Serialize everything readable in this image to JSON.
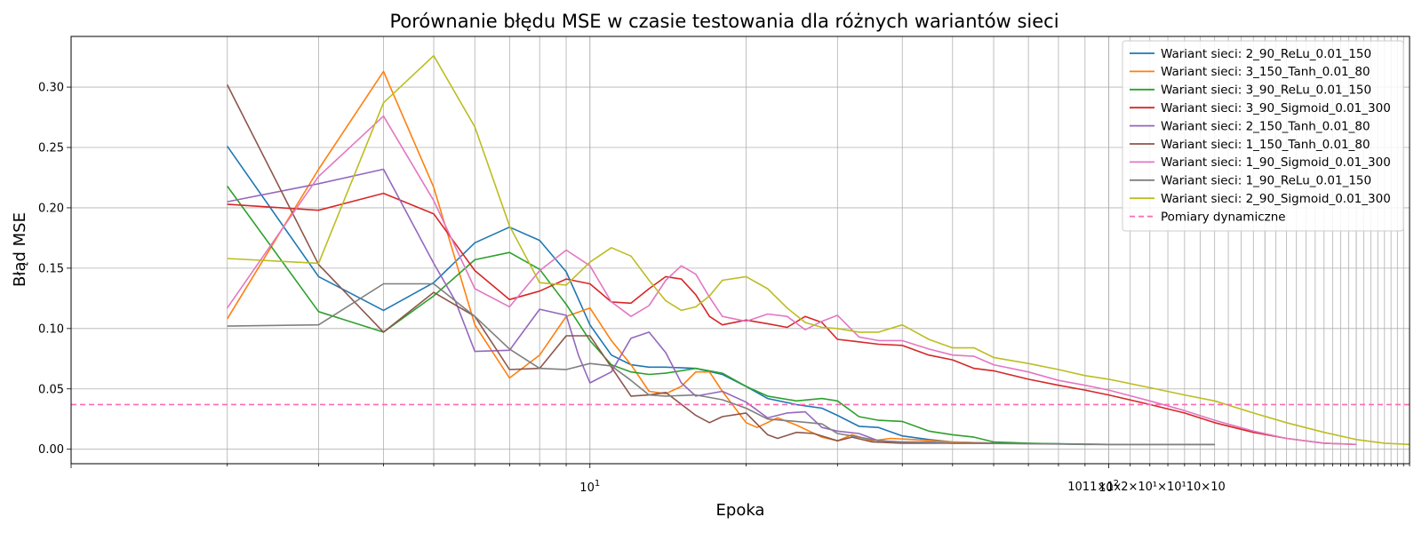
{
  "chart_data": {
    "type": "line",
    "title": "Porównanie błędu MSE w czasie testowania dla różnych wariantów sieci",
    "xlabel": "Epoka",
    "ylabel": "Błąd MSE",
    "xscale": "log",
    "xlim": [
      1.0,
      380
    ],
    "ylim": [
      -0.012,
      0.342
    ],
    "yticks": [
      0.0,
      0.05,
      0.1,
      0.15,
      0.2,
      0.25,
      0.3
    ],
    "ytick_labels": [
      "0.00",
      "0.05",
      "0.10",
      "0.15",
      "0.20",
      "0.25",
      "0.30"
    ],
    "xticks": [
      {
        "value": 10,
        "label": "10",
        "sup": "1"
      },
      {
        "value": 100,
        "label": "10",
        "sup": "2"
      }
    ],
    "xtick_overlap_label": "1011×1x2×10¹×10¹10×10",
    "grid": true,
    "legend_position": "top-right",
    "series": [
      {
        "name": "Wariant sieci: 2_90_ReLu_0.01_150",
        "color": "#1f77b4",
        "points": [
          [
            2,
            0.251
          ],
          [
            3,
            0.143
          ],
          [
            4,
            0.115
          ],
          [
            5,
            0.138
          ],
          [
            6,
            0.171
          ],
          [
            7,
            0.184
          ],
          [
            8,
            0.173
          ],
          [
            9,
            0.147
          ],
          [
            10,
            0.103
          ],
          [
            11,
            0.078
          ],
          [
            12,
            0.07
          ],
          [
            13,
            0.068
          ],
          [
            14,
            0.068
          ],
          [
            16,
            0.067
          ],
          [
            18,
            0.062
          ],
          [
            20,
            0.052
          ],
          [
            22,
            0.042
          ],
          [
            25,
            0.037
          ],
          [
            28,
            0.034
          ],
          [
            30,
            0.028
          ],
          [
            33,
            0.019
          ],
          [
            36,
            0.018
          ],
          [
            40,
            0.011
          ],
          [
            45,
            0.008
          ],
          [
            50,
            0.006
          ],
          [
            60,
            0.005
          ],
          [
            80,
            0.0045
          ],
          [
            100,
            0.004
          ],
          [
            130,
            0.004
          ],
          [
            160,
            0.004
          ]
        ]
      },
      {
        "name": "Wariant sieci: 3_150_Tanh_0.01_80",
        "color": "#ff7f0e",
        "points": [
          [
            2,
            0.108
          ],
          [
            3,
            0.232
          ],
          [
            4,
            0.313
          ],
          [
            5,
            0.217
          ],
          [
            6,
            0.103
          ],
          [
            7,
            0.059
          ],
          [
            8,
            0.078
          ],
          [
            9,
            0.11
          ],
          [
            10,
            0.117
          ],
          [
            11,
            0.09
          ],
          [
            12,
            0.07
          ],
          [
            13,
            0.048
          ],
          [
            14,
            0.046
          ],
          [
            15,
            0.052
          ],
          [
            16,
            0.064
          ],
          [
            17,
            0.064
          ],
          [
            18,
            0.048
          ],
          [
            20,
            0.022
          ],
          [
            21,
            0.018
          ],
          [
            23,
            0.026
          ],
          [
            25,
            0.02
          ],
          [
            28,
            0.01
          ],
          [
            30,
            0.007
          ],
          [
            32,
            0.012
          ],
          [
            35,
            0.007
          ],
          [
            38,
            0.009
          ],
          [
            42,
            0.008
          ],
          [
            50,
            0.006
          ],
          [
            60,
            0.005
          ]
        ]
      },
      {
        "name": "Wariant sieci: 3_90_ReLu_0.01_150",
        "color": "#2ca02c",
        "points": [
          [
            2,
            0.218
          ],
          [
            3,
            0.114
          ],
          [
            4,
            0.097
          ],
          [
            5,
            0.127
          ],
          [
            6,
            0.157
          ],
          [
            7,
            0.163
          ],
          [
            8,
            0.149
          ],
          [
            9,
            0.12
          ],
          [
            10,
            0.09
          ],
          [
            11,
            0.07
          ],
          [
            12,
            0.064
          ],
          [
            13,
            0.062
          ],
          [
            14,
            0.063
          ],
          [
            16,
            0.067
          ],
          [
            18,
            0.063
          ],
          [
            20,
            0.052
          ],
          [
            22,
            0.044
          ],
          [
            25,
            0.04
          ],
          [
            28,
            0.042
          ],
          [
            30,
            0.04
          ],
          [
            33,
            0.027
          ],
          [
            36,
            0.024
          ],
          [
            40,
            0.023
          ],
          [
            45,
            0.015
          ],
          [
            50,
            0.012
          ],
          [
            55,
            0.01
          ],
          [
            60,
            0.006
          ],
          [
            70,
            0.005
          ],
          [
            90,
            0.004
          ],
          [
            120,
            0.004
          ],
          [
            160,
            0.004
          ]
        ]
      },
      {
        "name": "Wariant sieci: 3_90_Sigmoid_0.01_300",
        "color": "#d62728",
        "points": [
          [
            2,
            0.203
          ],
          [
            3,
            0.198
          ],
          [
            4,
            0.212
          ],
          [
            5,
            0.195
          ],
          [
            6,
            0.148
          ],
          [
            7,
            0.124
          ],
          [
            8,
            0.131
          ],
          [
            9,
            0.141
          ],
          [
            10,
            0.137
          ],
          [
            11,
            0.122
          ],
          [
            12,
            0.121
          ],
          [
            13,
            0.133
          ],
          [
            14,
            0.143
          ],
          [
            15,
            0.141
          ],
          [
            16,
            0.128
          ],
          [
            17,
            0.11
          ],
          [
            18,
            0.103
          ],
          [
            20,
            0.107
          ],
          [
            22,
            0.104
          ],
          [
            24,
            0.101
          ],
          [
            26,
            0.11
          ],
          [
            28,
            0.105
          ],
          [
            30,
            0.091
          ],
          [
            33,
            0.089
          ],
          [
            36,
            0.087
          ],
          [
            40,
            0.086
          ],
          [
            45,
            0.078
          ],
          [
            50,
            0.074
          ],
          [
            55,
            0.067
          ],
          [
            60,
            0.065
          ],
          [
            70,
            0.058
          ],
          [
            80,
            0.053
          ],
          [
            90,
            0.049
          ],
          [
            100,
            0.045
          ],
          [
            120,
            0.037
          ],
          [
            140,
            0.03
          ],
          [
            160,
            0.022
          ],
          [
            190,
            0.014
          ],
          [
            220,
            0.009
          ],
          [
            260,
            0.005
          ],
          [
            300,
            0.004
          ]
        ]
      },
      {
        "name": "Wariant sieci: 2_150_Tanh_0.01_80",
        "color": "#9467bd",
        "points": [
          [
            2,
            0.205
          ],
          [
            3,
            0.22
          ],
          [
            4,
            0.232
          ],
          [
            5,
            0.154
          ],
          [
            5.5,
            0.123
          ],
          [
            6,
            0.081
          ],
          [
            7,
            0.082
          ],
          [
            8,
            0.116
          ],
          [
            9,
            0.111
          ],
          [
            9.5,
            0.078
          ],
          [
            10,
            0.055
          ],
          [
            11,
            0.064
          ],
          [
            12,
            0.092
          ],
          [
            13,
            0.097
          ],
          [
            14,
            0.08
          ],
          [
            15,
            0.055
          ],
          [
            16,
            0.044
          ],
          [
            18,
            0.048
          ],
          [
            20,
            0.039
          ],
          [
            22,
            0.026
          ],
          [
            24,
            0.03
          ],
          [
            26,
            0.031
          ],
          [
            28,
            0.018
          ],
          [
            30,
            0.015
          ],
          [
            33,
            0.013
          ],
          [
            36,
            0.007
          ],
          [
            40,
            0.006
          ],
          [
            45,
            0.006
          ],
          [
            50,
            0.005
          ],
          [
            60,
            0.005
          ]
        ]
      },
      {
        "name": "Wariant sieci: 1_150_Tanh_0.01_80",
        "color": "#8c564b",
        "points": [
          [
            2,
            0.302
          ],
          [
            3,
            0.153
          ],
          [
            4,
            0.097
          ],
          [
            5,
            0.13
          ],
          [
            6,
            0.11
          ],
          [
            7,
            0.066
          ],
          [
            8,
            0.067
          ],
          [
            9,
            0.094
          ],
          [
            10,
            0.094
          ],
          [
            11,
            0.068
          ],
          [
            12,
            0.044
          ],
          [
            13,
            0.045
          ],
          [
            14,
            0.047
          ],
          [
            16,
            0.028
          ],
          [
            17,
            0.022
          ],
          [
            18,
            0.027
          ],
          [
            20,
            0.03
          ],
          [
            22,
            0.012
          ],
          [
            23,
            0.009
          ],
          [
            25,
            0.014
          ],
          [
            27,
            0.013
          ],
          [
            30,
            0.007
          ],
          [
            32,
            0.01
          ],
          [
            35,
            0.006
          ],
          [
            40,
            0.005
          ],
          [
            50,
            0.005
          ],
          [
            60,
            0.005
          ]
        ]
      },
      {
        "name": "Wariant sieci: 1_90_Sigmoid_0.01_300",
        "color": "#e377c2",
        "points": [
          [
            2,
            0.117
          ],
          [
            3,
            0.226
          ],
          [
            4,
            0.276
          ],
          [
            5,
            0.206
          ],
          [
            6,
            0.133
          ],
          [
            7,
            0.118
          ],
          [
            8,
            0.148
          ],
          [
            9,
            0.165
          ],
          [
            10,
            0.152
          ],
          [
            11,
            0.122
          ],
          [
            12,
            0.11
          ],
          [
            13,
            0.119
          ],
          [
            14,
            0.14
          ],
          [
            15,
            0.152
          ],
          [
            16,
            0.145
          ],
          [
            17,
            0.126
          ],
          [
            18,
            0.11
          ],
          [
            20,
            0.106
          ],
          [
            22,
            0.112
          ],
          [
            24,
            0.11
          ],
          [
            26,
            0.099
          ],
          [
            28,
            0.106
          ],
          [
            30,
            0.111
          ],
          [
            33,
            0.093
          ],
          [
            36,
            0.09
          ],
          [
            40,
            0.09
          ],
          [
            45,
            0.083
          ],
          [
            50,
            0.078
          ],
          [
            55,
            0.077
          ],
          [
            60,
            0.07
          ],
          [
            70,
            0.064
          ],
          [
            80,
            0.057
          ],
          [
            90,
            0.053
          ],
          [
            100,
            0.049
          ],
          [
            120,
            0.04
          ],
          [
            140,
            0.032
          ],
          [
            160,
            0.024
          ],
          [
            190,
            0.015
          ],
          [
            220,
            0.009
          ],
          [
            260,
            0.005
          ],
          [
            300,
            0.004
          ]
        ]
      },
      {
        "name": "Wariant sieci: 1_90_ReLu_0.01_150",
        "color": "#7f7f7f",
        "points": [
          [
            2,
            0.102
          ],
          [
            3,
            0.103
          ],
          [
            4,
            0.137
          ],
          [
            5,
            0.137
          ],
          [
            6,
            0.11
          ],
          [
            7,
            0.083
          ],
          [
            8,
            0.067
          ],
          [
            9,
            0.066
          ],
          [
            10,
            0.071
          ],
          [
            11,
            0.069
          ],
          [
            12,
            0.057
          ],
          [
            13,
            0.045
          ],
          [
            14,
            0.044
          ],
          [
            16,
            0.045
          ],
          [
            18,
            0.041
          ],
          [
            20,
            0.034
          ],
          [
            22,
            0.025
          ],
          [
            25,
            0.023
          ],
          [
            28,
            0.021
          ],
          [
            30,
            0.013
          ],
          [
            33,
            0.01
          ],
          [
            36,
            0.007
          ],
          [
            40,
            0.006
          ],
          [
            50,
            0.005
          ],
          [
            70,
            0.0045
          ],
          [
            100,
            0.004
          ],
          [
            130,
            0.004
          ],
          [
            160,
            0.004
          ]
        ]
      },
      {
        "name": "Wariant sieci: 2_90_Sigmoid_0.01_300",
        "color": "#bcbd22",
        "points": [
          [
            2,
            0.158
          ],
          [
            3,
            0.154
          ],
          [
            4,
            0.287
          ],
          [
            5,
            0.326
          ],
          [
            6,
            0.267
          ],
          [
            7,
            0.185
          ],
          [
            8,
            0.138
          ],
          [
            9,
            0.136
          ],
          [
            10,
            0.155
          ],
          [
            11,
            0.167
          ],
          [
            12,
            0.16
          ],
          [
            13,
            0.14
          ],
          [
            14,
            0.123
          ],
          [
            15,
            0.115
          ],
          [
            16,
            0.118
          ],
          [
            17,
            0.127
          ],
          [
            18,
            0.14
          ],
          [
            20,
            0.143
          ],
          [
            22,
            0.133
          ],
          [
            24,
            0.117
          ],
          [
            26,
            0.105
          ],
          [
            28,
            0.101
          ],
          [
            30,
            0.1
          ],
          [
            33,
            0.097
          ],
          [
            36,
            0.097
          ],
          [
            40,
            0.103
          ],
          [
            45,
            0.091
          ],
          [
            50,
            0.084
          ],
          [
            55,
            0.084
          ],
          [
            60,
            0.076
          ],
          [
            70,
            0.071
          ],
          [
            80,
            0.066
          ],
          [
            90,
            0.061
          ],
          [
            100,
            0.058
          ],
          [
            120,
            0.051
          ],
          [
            140,
            0.045
          ],
          [
            160,
            0.04
          ],
          [
            190,
            0.03
          ],
          [
            220,
            0.022
          ],
          [
            260,
            0.014
          ],
          [
            300,
            0.008
          ],
          [
            340,
            0.005
          ],
          [
            380,
            0.004
          ]
        ]
      }
    ],
    "reference_lines": [
      {
        "name": "Pomiary dynamiczne",
        "y": 0.037,
        "color": "#ff69b4",
        "style": "dashed"
      }
    ]
  }
}
